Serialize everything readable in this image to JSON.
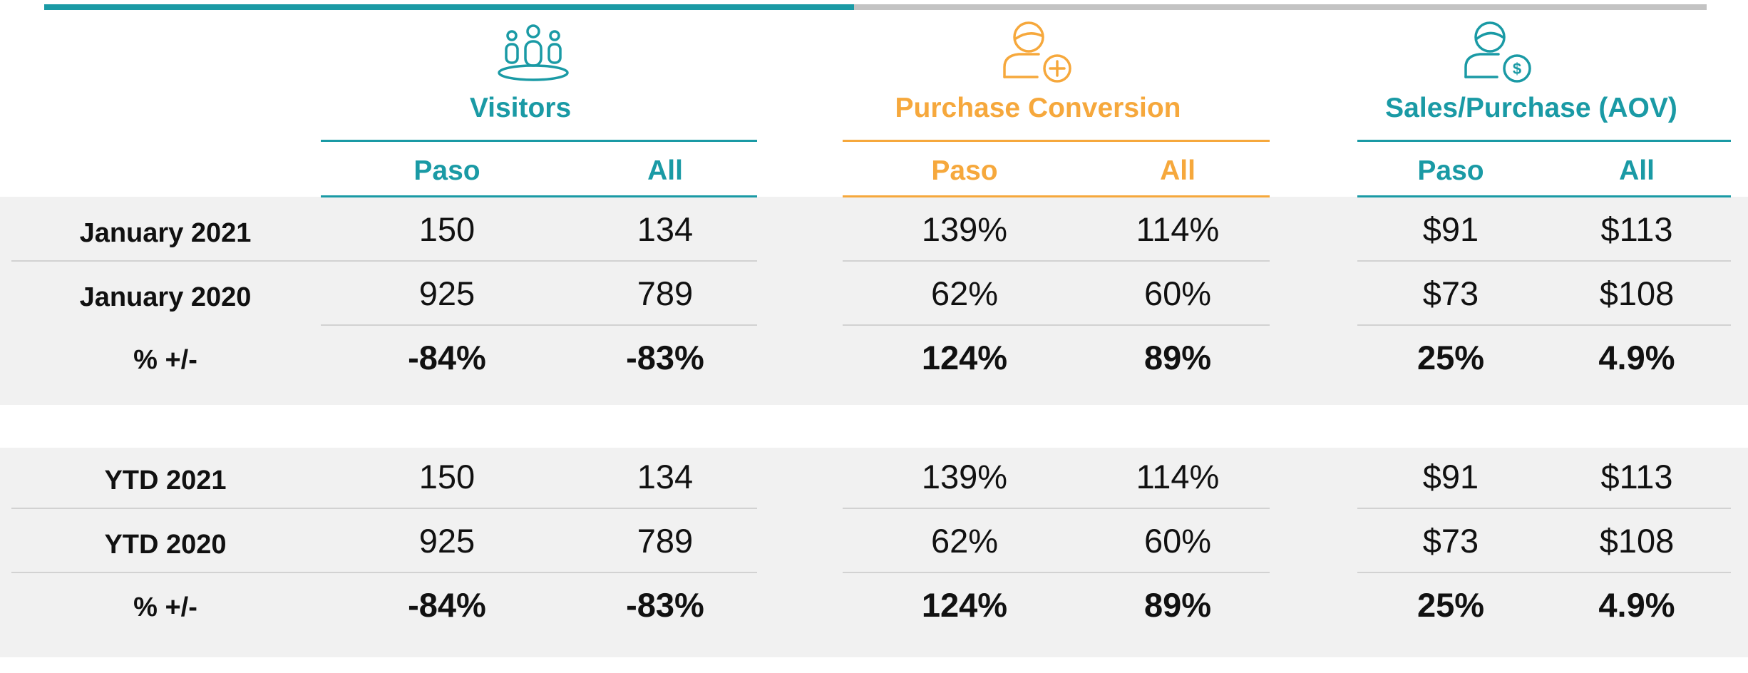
{
  "chart_data": {
    "type": "table",
    "groups": [
      {
        "title": "Visitors",
        "icon": "people-group-icon",
        "color": "#1a9aa5"
      },
      {
        "title": "Purchase Conversion",
        "icon": "person-add-icon",
        "color": "#f6a83c"
      },
      {
        "title": "Sales/Purchase (AOV)",
        "icon": "person-dollar-icon",
        "color": "#1a9aa5"
      }
    ],
    "subheaders": [
      "Paso",
      "All"
    ],
    "sections": [
      {
        "rows": [
          {
            "label": "January 2021",
            "values": [
              "150",
              "134",
              "139%",
              "114%",
              "$91",
              "$113"
            ]
          },
          {
            "label": "January 2020",
            "values": [
              "925",
              "789",
              "62%",
              "60%",
              "$73",
              "$108"
            ]
          },
          {
            "label": "% +/-",
            "values": [
              "-84%",
              "-83%",
              "124%",
              "89%",
              "25%",
              "4.9%"
            ],
            "change": [
              -84,
              -83,
              124,
              89,
              25,
              4.9
            ]
          }
        ]
      },
      {
        "rows": [
          {
            "label": "YTD 2021",
            "values": [
              "150",
              "134",
              "139%",
              "114%",
              "$91",
              "$113"
            ]
          },
          {
            "label": "YTD 2020",
            "values": [
              "925",
              "789",
              "62%",
              "60%",
              "$73",
              "$108"
            ]
          },
          {
            "label": "% +/-",
            "values": [
              "-84%",
              "-83%",
              "124%",
              "89%",
              "25%",
              "4.9%"
            ],
            "change": [
              -84,
              -83,
              124,
              89,
              25,
              4.9
            ]
          }
        ]
      }
    ],
    "colors": {
      "positive": "#1f8744",
      "negative": "#cc3324",
      "accent": "#1a9aa5",
      "accent2": "#f6a83c",
      "band": "#f1f1f1"
    }
  }
}
